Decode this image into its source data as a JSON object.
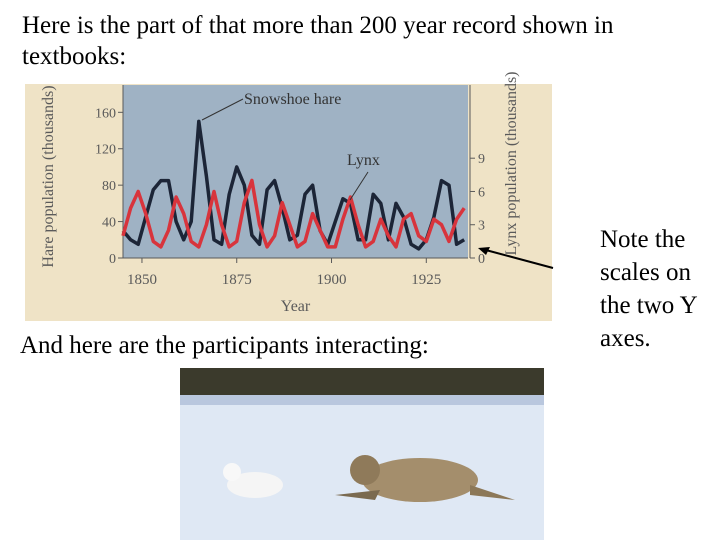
{
  "slide": {
    "intro": "Here is the part of that more than 200 year record shown in textbooks:",
    "caption": "And here are the participants interacting:",
    "note": "Note the scales on the two Y axes."
  },
  "chart_data": {
    "type": "line",
    "x_label": "Year",
    "y_label": "Hare population (thousands)",
    "y2_label": "Lynx population (thousands)",
    "annotations": [
      "Snowshoe hare",
      "Lynx"
    ],
    "x": [
      1845,
      1847,
      1849,
      1851,
      1853,
      1855,
      1857,
      1859,
      1861,
      1863,
      1865,
      1867,
      1869,
      1871,
      1873,
      1875,
      1877,
      1879,
      1881,
      1883,
      1885,
      1887,
      1889,
      1891,
      1893,
      1895,
      1897,
      1899,
      1901,
      1903,
      1905,
      1907,
      1909,
      1911,
      1913,
      1915,
      1917,
      1919,
      1921,
      1923,
      1925,
      1927,
      1929,
      1931,
      1933,
      1935
    ],
    "series": [
      {
        "name": "Snowshoe hare",
        "color": "#1c2537",
        "values": [
          30,
          20,
          15,
          45,
          75,
          85,
          85,
          40,
          20,
          40,
          150,
          90,
          20,
          15,
          70,
          100,
          80,
          25,
          15,
          75,
          85,
          55,
          20,
          25,
          70,
          80,
          30,
          15,
          40,
          65,
          60,
          20,
          20,
          70,
          60,
          20,
          60,
          45,
          15,
          10,
          20,
          45,
          85,
          80,
          15,
          20
        ]
      },
      {
        "name": "Lynx",
        "color": "#d8343c",
        "axis": "y2",
        "values": [
          2,
          4.5,
          6,
          4,
          1.5,
          1,
          2.5,
          5.5,
          4,
          1.5,
          1,
          3,
          6,
          3,
          1,
          1.5,
          5,
          7,
          3,
          1,
          2,
          5,
          3,
          1,
          1.5,
          4,
          2.5,
          1,
          1,
          3.5,
          5.5,
          3,
          1,
          1.5,
          3.5,
          2,
          1,
          3.5,
          4,
          2,
          1.5,
          3.5,
          3,
          1.5,
          3.5,
          4.5
        ]
      }
    ],
    "xlim": [
      1845,
      1936
    ],
    "xticks": [
      1850,
      1875,
      1900,
      1925
    ],
    "ylim": [
      0,
      190
    ],
    "yticks": [
      0,
      40,
      80,
      120,
      160
    ],
    "y2lim": [
      0,
      15.6
    ],
    "y2ticks": [
      0,
      3,
      6,
      9
    ]
  }
}
